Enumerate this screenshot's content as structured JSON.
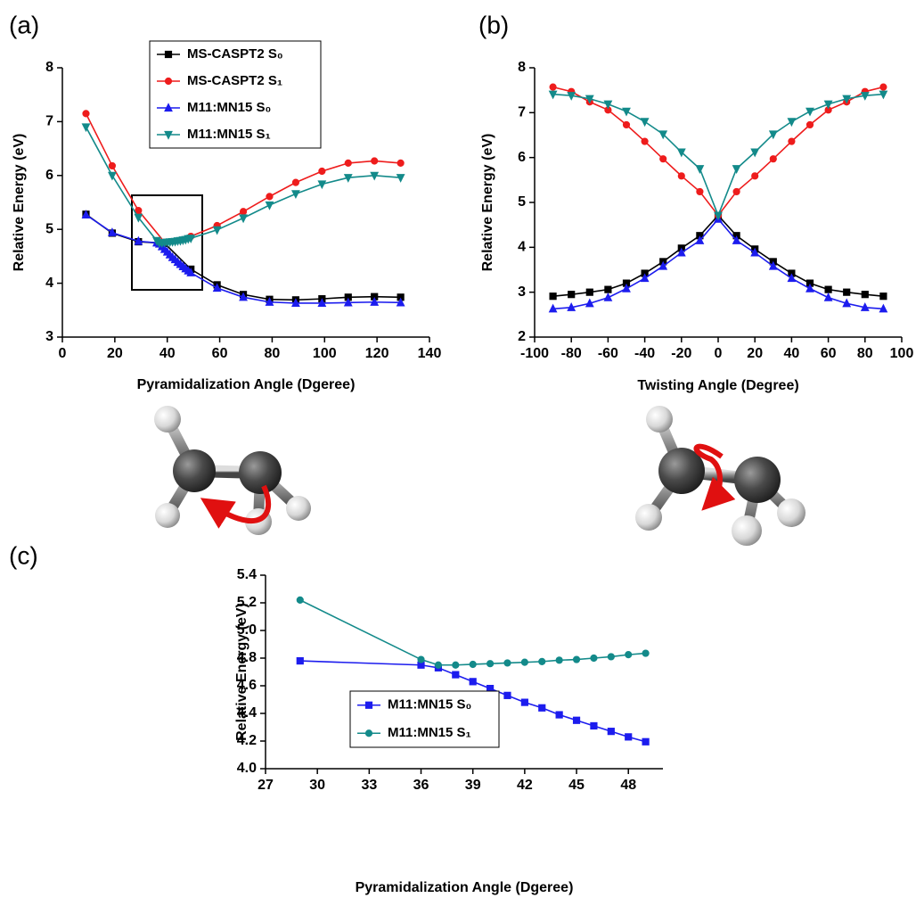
{
  "chart_data": [
    {
      "type": "line",
      "panel": "(a)",
      "xlabel": "Pyramidalization Angle (Dgeree)",
      "ylabel": "Relative Energy (eV)",
      "xlim": [
        0,
        140
      ],
      "xticks": [
        0,
        20,
        40,
        60,
        80,
        100,
        120,
        140
      ],
      "ylim": [
        3,
        8
      ],
      "yticks": [
        3,
        4,
        5,
        6,
        7,
        8
      ],
      "legend": "upper center",
      "series": [
        {
          "name": "MS-CASPT2 S₀",
          "color": "#000000",
          "marker": "square",
          "x": [
            9,
            19,
            29,
            39,
            49,
            59,
            69,
            79,
            89,
            99,
            109,
            119,
            129
          ],
          "values": [
            5.28,
            4.93,
            4.77,
            4.74,
            4.26,
            3.97,
            3.79,
            3.7,
            3.69,
            3.71,
            3.74,
            3.75,
            3.74
          ]
        },
        {
          "name": "MS-CASPT2 S₁",
          "color": "#ee1c1c",
          "marker": "circle",
          "x": [
            9,
            19,
            29,
            39,
            49,
            59,
            69,
            79,
            89,
            99,
            109,
            119,
            129
          ],
          "values": [
            7.15,
            6.18,
            5.35,
            4.76,
            4.87,
            5.07,
            5.33,
            5.61,
            5.87,
            6.08,
            6.23,
            6.27,
            6.23
          ]
        },
        {
          "name": "M11:MN15 S₀",
          "color": "#1c1cee",
          "marker": "triangle-up",
          "x": [
            9,
            19,
            29,
            36,
            37,
            38,
            39,
            40,
            41,
            42,
            43,
            44,
            45,
            46,
            47,
            48,
            49,
            59,
            69,
            79,
            89,
            99,
            109,
            119,
            129
          ],
          "values": [
            5.27,
            4.94,
            4.78,
            4.75,
            4.73,
            4.68,
            4.63,
            4.58,
            4.53,
            4.48,
            4.44,
            4.39,
            4.35,
            4.31,
            4.27,
            4.23,
            4.195,
            3.91,
            3.74,
            3.65,
            3.63,
            3.63,
            3.64,
            3.65,
            3.64
          ]
        },
        {
          "name": "M11:MN15 S₁",
          "color": "#138a8a",
          "marker": "triangle-down",
          "x": [
            9,
            19,
            29,
            36,
            37,
            38,
            39,
            40,
            41,
            42,
            43,
            44,
            45,
            46,
            47,
            48,
            49,
            59,
            69,
            79,
            89,
            99,
            109,
            119,
            129
          ],
          "values": [
            6.9,
            6.0,
            5.22,
            4.79,
            4.75,
            4.75,
            4.755,
            4.76,
            4.765,
            4.77,
            4.775,
            4.785,
            4.79,
            4.8,
            4.81,
            4.825,
            4.835,
            4.99,
            5.21,
            5.45,
            5.66,
            5.84,
            5.96,
            6.0,
            5.96
          ]
        }
      ]
    },
    {
      "type": "line",
      "panel": "(b)",
      "xlabel": "Twisting Angle (Degree)",
      "ylabel": "Relative Energy (eV)",
      "xlim": [
        -100,
        100
      ],
      "xticks": [
        -100,
        -80,
        -60,
        -40,
        -20,
        0,
        20,
        40,
        60,
        80,
        100
      ],
      "ylim": [
        2,
        8
      ],
      "yticks": [
        2,
        3,
        4,
        5,
        6,
        7,
        8
      ],
      "x": [
        -90,
        -80,
        -70,
        -60,
        -50,
        -40,
        -30,
        -20,
        -10,
        0,
        10,
        20,
        30,
        40,
        50,
        60,
        70,
        80,
        90
      ],
      "series": [
        {
          "color": "#000000",
          "marker": "square",
          "values": [
            2.91,
            2.95,
            3.0,
            3.06,
            3.2,
            3.42,
            3.68,
            3.98,
            4.26,
            4.71,
            4.26,
            3.96,
            3.68,
            3.42,
            3.2,
            3.06,
            3.0,
            2.95,
            2.91
          ]
        },
        {
          "color": "#ee1c1c",
          "marker": "circle",
          "values": [
            7.57,
            7.47,
            7.24,
            7.06,
            6.73,
            6.36,
            5.97,
            5.59,
            5.24,
            4.71,
            5.24,
            5.59,
            5.97,
            6.36,
            6.73,
            7.06,
            7.24,
            7.47,
            7.57
          ]
        },
        {
          "color": "#1c1cee",
          "marker": "triangle-up",
          "values": [
            2.63,
            2.66,
            2.75,
            2.88,
            3.08,
            3.31,
            3.58,
            3.88,
            4.15,
            4.63,
            4.15,
            3.88,
            3.58,
            3.31,
            3.08,
            2.88,
            2.75,
            2.66,
            2.63
          ]
        },
        {
          "color": "#138a8a",
          "marker": "triangle-down",
          "values": [
            7.41,
            7.38,
            7.31,
            7.19,
            7.03,
            6.8,
            6.52,
            6.12,
            5.75,
            4.71,
            5.75,
            6.12,
            6.52,
            6.8,
            7.03,
            7.19,
            7.31,
            7.38,
            7.41
          ]
        }
      ]
    },
    {
      "type": "line",
      "panel": "(c)",
      "xlabel": "Pyramidalization Angle (Dgeree)",
      "ylabel": "Relative Energy (eV)",
      "xlim": [
        27,
        50
      ],
      "xticks": [
        27,
        30,
        33,
        36,
        39,
        42,
        45,
        48
      ],
      "ylim": [
        4.0,
        5.4
      ],
      "yticks": [
        {
          "value": 4.0,
          "label": "4.0"
        },
        4.2,
        4.4,
        4.6,
        4.8,
        {
          "value": 5.0,
          "label": "5.0"
        },
        5.2,
        5.4
      ],
      "legend": "lower center",
      "x": [
        29,
        36,
        37,
        38,
        39,
        40,
        41,
        42,
        43,
        44,
        45,
        46,
        47,
        48,
        49
      ],
      "series": [
        {
          "name": "M11:MN15 S₀",
          "color": "#1c1cee",
          "marker": "square",
          "values": [
            4.78,
            4.75,
            4.73,
            4.68,
            4.63,
            4.58,
            4.53,
            4.48,
            4.44,
            4.39,
            4.35,
            4.31,
            4.27,
            4.23,
            4.195
          ]
        },
        {
          "name": "M11:MN15 S₁",
          "color": "#138a8a",
          "marker": "circle",
          "values": [
            5.22,
            4.79,
            4.75,
            4.75,
            4.755,
            4.76,
            4.765,
            4.77,
            4.775,
            4.785,
            4.79,
            4.8,
            4.81,
            4.825,
            4.835
          ]
        }
      ]
    }
  ]
}
